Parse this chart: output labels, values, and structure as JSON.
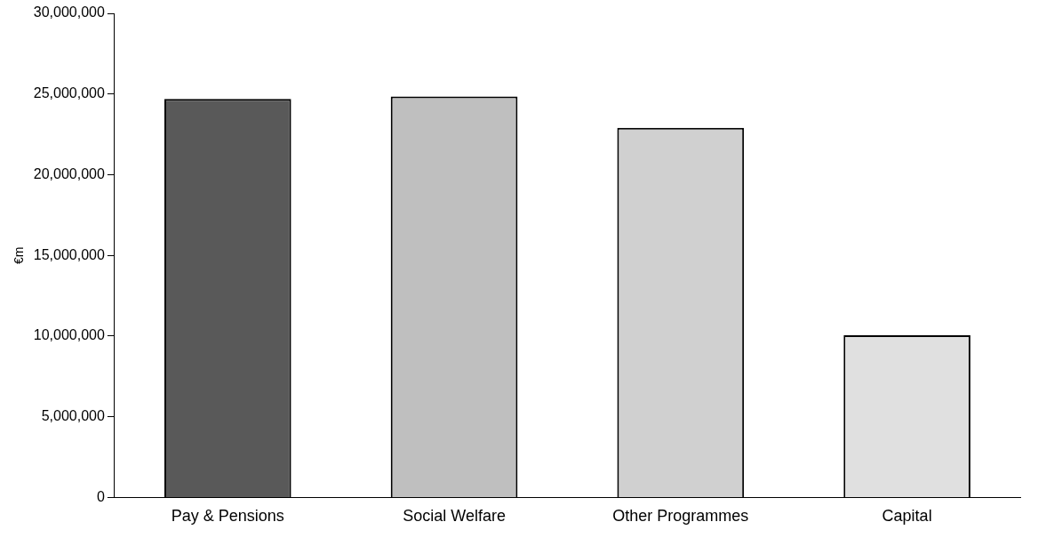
{
  "chart_data": {
    "type": "bar",
    "ylabel": "€m",
    "categories": [
      "Pay & Pensions",
      "Social Welfare",
      "Other Programmes",
      "Capital"
    ],
    "values": [
      24700000,
      24850000,
      22900000,
      10050000
    ],
    "colors": [
      "#595959",
      "#bfbfbf",
      "#d0d0d0",
      "#e0e0e0"
    ],
    "ylim": [
      0,
      30000000
    ],
    "yticks": [
      0,
      {
        "value": 5000000,
        "label": "5,000,000"
      },
      {
        "value": 10000000,
        "label": "10,000,000"
      },
      {
        "value": 15000000,
        "label": "15,000,000"
      },
      {
        "value": 20000000,
        "label": "20,000,000"
      },
      {
        "value": 25000000,
        "label": "25,000,000"
      },
      {
        "value": 30000000,
        "label": "30,000,000"
      }
    ],
    "grid": false,
    "legend": false
  }
}
